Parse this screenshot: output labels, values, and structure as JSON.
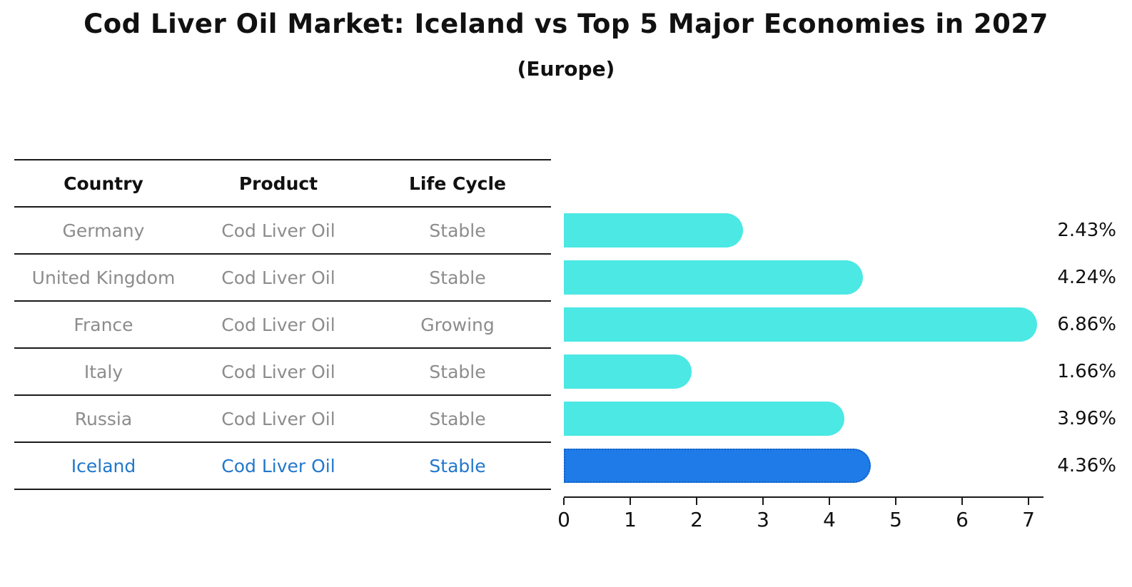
{
  "title": "Cod Liver Oil Market: Iceland vs Top 5 Major Economies in 2027",
  "subtitle": "(Europe)",
  "table": {
    "headers": [
      "Country",
      "Product",
      "Life Cycle"
    ],
    "rows": [
      {
        "country": "Germany",
        "product": "Cod Liver Oil",
        "life_cycle": "Stable",
        "highlight": false
      },
      {
        "country": "United Kingdom",
        "product": "Cod Liver Oil",
        "life_cycle": "Stable",
        "highlight": false
      },
      {
        "country": "France",
        "product": "Cod Liver Oil",
        "life_cycle": "Growing",
        "highlight": false
      },
      {
        "country": "Italy",
        "product": "Cod Liver Oil",
        "life_cycle": "Stable",
        "highlight": false
      },
      {
        "country": "Russia",
        "product": "Cod Liver Oil",
        "life_cycle": "Stable",
        "highlight": false
      },
      {
        "country": "Iceland",
        "product": "Cod Liver Oil",
        "life_cycle": "Stable",
        "highlight": true
      }
    ]
  },
  "chart_data": {
    "type": "bar",
    "orientation": "horizontal",
    "title": "Cod Liver Oil Market: Iceland vs Top 5 Major Economies in 2027",
    "subtitle": "(Europe)",
    "categories": [
      "Germany",
      "United Kingdom",
      "France",
      "Italy",
      "Russia",
      "Iceland"
    ],
    "values": [
      2.43,
      4.24,
      6.86,
      1.66,
      3.96,
      4.36
    ],
    "value_labels": [
      "2.43%",
      "4.24%",
      "6.86%",
      "1.66%",
      "3.96%",
      "4.36%"
    ],
    "highlight_index": 5,
    "xlim": [
      0,
      7
    ],
    "x_ticks": [
      "0",
      "1",
      "2",
      "3",
      "4",
      "5",
      "6",
      "7"
    ],
    "xlabel": "",
    "ylabel": "",
    "grid": false,
    "legend": false,
    "colors": {
      "bar_default": "#4be8e4",
      "bar_highlight": "#1e7be8",
      "bar_highlight_border": "#1460c0",
      "highlight_text": "#2277cc",
      "row_text": "#8c8c8c",
      "header_text": "#111111",
      "axis_text": "#111111"
    }
  }
}
